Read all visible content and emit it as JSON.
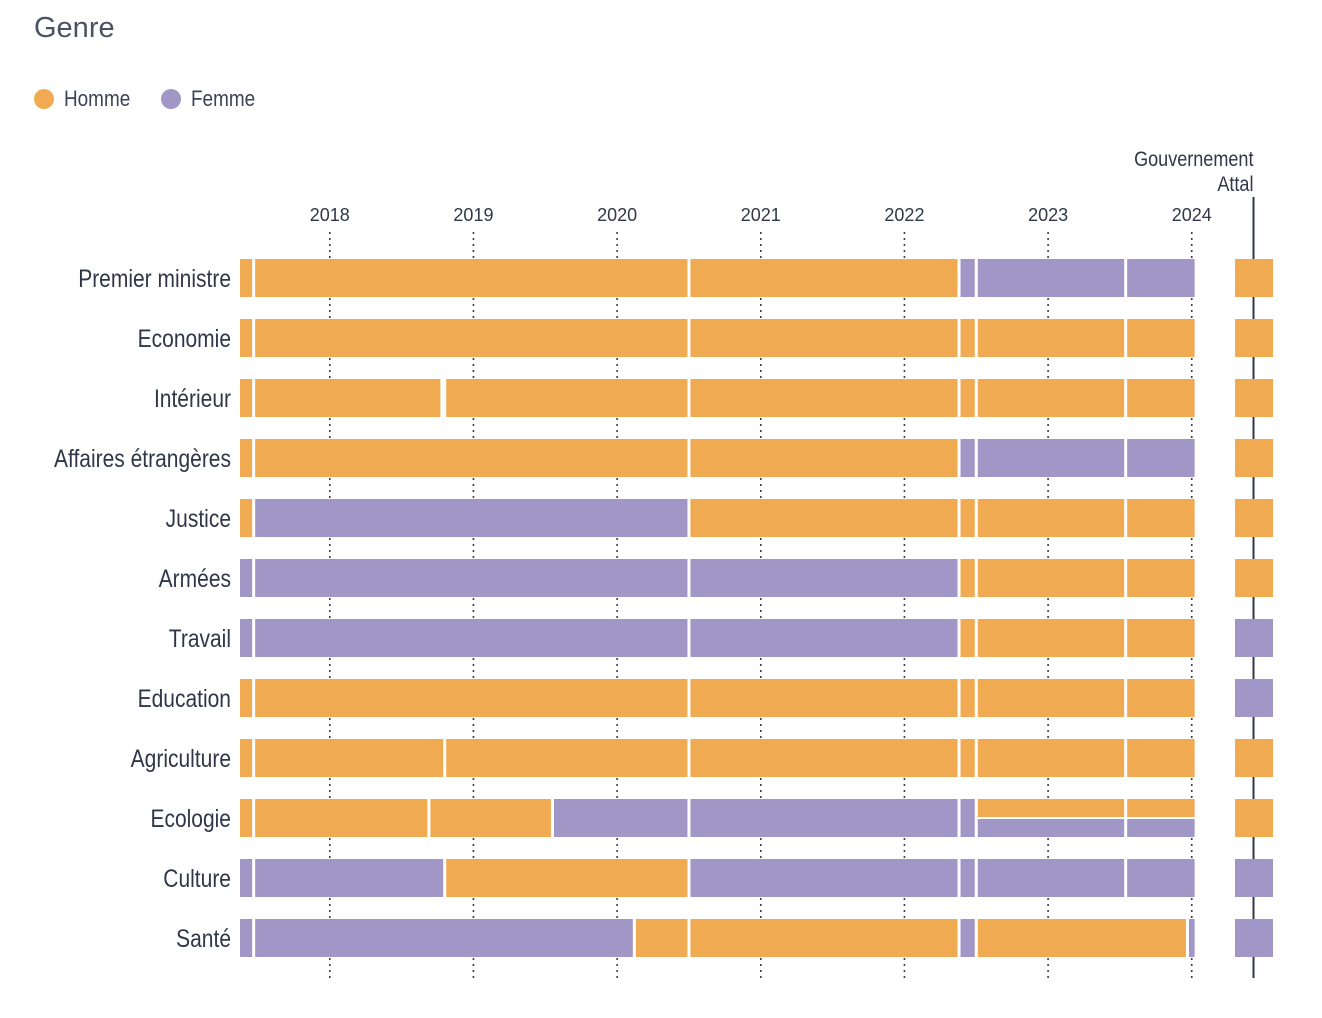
{
  "title": "Genre",
  "legend": [
    {
      "label": "Homme",
      "color": "#f0ab52"
    },
    {
      "label": "Femme",
      "color": "#a197c7"
    }
  ],
  "chart_data": {
    "type": "bar",
    "subtype": "timeline",
    "title": "Genre",
    "x_ticks": [
      "2018",
      "2019",
      "2020",
      "2021",
      "2022",
      "2023",
      "2024"
    ],
    "xlim": [
      2017.375,
      2024.12
    ],
    "grid": "vertical dotted at year ticks",
    "legend_position": "top-left",
    "annotation": {
      "label": [
        "Gouvernement",
        "Attal"
      ],
      "separate_column": true
    },
    "colors": {
      "Homme": "#f0ab52",
      "Femme": "#a197c7"
    },
    "rows": [
      {
        "label": "Premier ministre",
        "segments": [
          [
            2017.375,
            2017.47,
            "Homme"
          ],
          [
            2017.47,
            2020.5,
            "Homme"
          ],
          [
            2020.5,
            2022.38,
            "Homme"
          ],
          [
            2022.38,
            2022.5,
            "Femme"
          ],
          [
            2022.5,
            2023.54,
            "Femme"
          ],
          [
            2023.54,
            2024.02,
            "Femme"
          ]
        ],
        "attal": "Homme"
      },
      {
        "label": "Economie",
        "segments": [
          [
            2017.375,
            2017.47,
            "Homme"
          ],
          [
            2017.47,
            2020.5,
            "Homme"
          ],
          [
            2020.5,
            2022.38,
            "Homme"
          ],
          [
            2022.38,
            2022.5,
            "Homme"
          ],
          [
            2022.5,
            2023.54,
            "Homme"
          ],
          [
            2023.54,
            2024.02,
            "Homme"
          ]
        ],
        "attal": "Homme"
      },
      {
        "label": "Intérieur",
        "segments": [
          [
            2017.375,
            2017.47,
            "Homme"
          ],
          [
            2017.47,
            2018.77,
            "Homme"
          ],
          [
            2018.8,
            2020.5,
            "Homme"
          ],
          [
            2020.5,
            2022.38,
            "Homme"
          ],
          [
            2022.38,
            2022.5,
            "Homme"
          ],
          [
            2022.5,
            2023.54,
            "Homme"
          ],
          [
            2023.54,
            2024.02,
            "Homme"
          ]
        ],
        "attal": "Homme"
      },
      {
        "label": "Affaires étrangères",
        "segments": [
          [
            2017.375,
            2017.47,
            "Homme"
          ],
          [
            2017.47,
            2020.5,
            "Homme"
          ],
          [
            2020.5,
            2022.38,
            "Homme"
          ],
          [
            2022.38,
            2022.5,
            "Femme"
          ],
          [
            2022.5,
            2023.54,
            "Femme"
          ],
          [
            2023.54,
            2024.02,
            "Femme"
          ]
        ],
        "attal": "Homme"
      },
      {
        "label": "Justice",
        "segments": [
          [
            2017.375,
            2017.47,
            "Homme"
          ],
          [
            2017.47,
            2020.5,
            "Femme"
          ],
          [
            2020.5,
            2022.38,
            "Homme"
          ],
          [
            2022.38,
            2022.5,
            "Homme"
          ],
          [
            2022.5,
            2023.54,
            "Homme"
          ],
          [
            2023.54,
            2024.02,
            "Homme"
          ]
        ],
        "attal": "Homme"
      },
      {
        "label": "Armées",
        "segments": [
          [
            2017.375,
            2017.47,
            "Femme"
          ],
          [
            2017.47,
            2020.5,
            "Femme"
          ],
          [
            2020.5,
            2022.38,
            "Femme"
          ],
          [
            2022.38,
            2022.5,
            "Homme"
          ],
          [
            2022.5,
            2023.54,
            "Homme"
          ],
          [
            2023.54,
            2024.02,
            "Homme"
          ]
        ],
        "attal": "Homme"
      },
      {
        "label": "Travail",
        "segments": [
          [
            2017.375,
            2017.47,
            "Femme"
          ],
          [
            2017.47,
            2020.5,
            "Femme"
          ],
          [
            2020.5,
            2022.38,
            "Femme"
          ],
          [
            2022.38,
            2022.5,
            "Homme"
          ],
          [
            2022.5,
            2023.54,
            "Homme"
          ],
          [
            2023.54,
            2024.02,
            "Homme"
          ]
        ],
        "attal": "Femme"
      },
      {
        "label": "Education",
        "segments": [
          [
            2017.375,
            2017.47,
            "Homme"
          ],
          [
            2017.47,
            2020.5,
            "Homme"
          ],
          [
            2020.5,
            2022.38,
            "Homme"
          ],
          [
            2022.38,
            2022.5,
            "Homme"
          ],
          [
            2022.5,
            2023.54,
            "Homme"
          ],
          [
            2023.54,
            2024.02,
            "Homme"
          ]
        ],
        "attal": "Femme"
      },
      {
        "label": "Agriculture",
        "segments": [
          [
            2017.375,
            2017.47,
            "Homme"
          ],
          [
            2017.47,
            2018.8,
            "Homme"
          ],
          [
            2018.8,
            2020.5,
            "Homme"
          ],
          [
            2020.5,
            2022.38,
            "Homme"
          ],
          [
            2022.38,
            2022.5,
            "Homme"
          ],
          [
            2022.5,
            2023.54,
            "Homme"
          ],
          [
            2023.54,
            2024.02,
            "Homme"
          ]
        ],
        "attal": "Homme"
      },
      {
        "label": "Ecologie",
        "segments": [
          [
            2017.375,
            2017.47,
            "Homme"
          ],
          [
            2017.47,
            2018.69,
            "Homme"
          ],
          [
            2018.69,
            2019.55,
            "Homme"
          ],
          [
            2019.55,
            2020.5,
            "Femme"
          ],
          [
            2020.5,
            2022.38,
            "Femme"
          ],
          [
            2022.38,
            2022.5,
            "Femme"
          ],
          [
            2022.5,
            2023.54,
            "Homme",
            "top"
          ],
          [
            2023.54,
            2024.02,
            "Homme",
            "top"
          ],
          [
            2022.5,
            2023.54,
            "Femme",
            "bottom"
          ],
          [
            2023.54,
            2024.02,
            "Femme",
            "bottom"
          ]
        ],
        "attal": "Homme"
      },
      {
        "label": "Culture",
        "segments": [
          [
            2017.375,
            2017.47,
            "Femme"
          ],
          [
            2017.47,
            2018.8,
            "Femme"
          ],
          [
            2018.8,
            2020.5,
            "Homme"
          ],
          [
            2020.5,
            2022.38,
            "Femme"
          ],
          [
            2022.38,
            2022.5,
            "Femme"
          ],
          [
            2022.5,
            2023.54,
            "Femme"
          ],
          [
            2023.54,
            2024.02,
            "Femme"
          ]
        ],
        "attal": "Femme"
      },
      {
        "label": "Santé",
        "segments": [
          [
            2017.375,
            2017.47,
            "Femme"
          ],
          [
            2017.47,
            2020.12,
            "Femme"
          ],
          [
            2020.12,
            2020.5,
            "Homme"
          ],
          [
            2020.5,
            2022.38,
            "Homme"
          ],
          [
            2022.38,
            2022.5,
            "Femme"
          ],
          [
            2022.5,
            2023.97,
            "Homme"
          ],
          [
            2023.97,
            2024.02,
            "Femme"
          ]
        ],
        "attal": "Femme"
      }
    ]
  }
}
